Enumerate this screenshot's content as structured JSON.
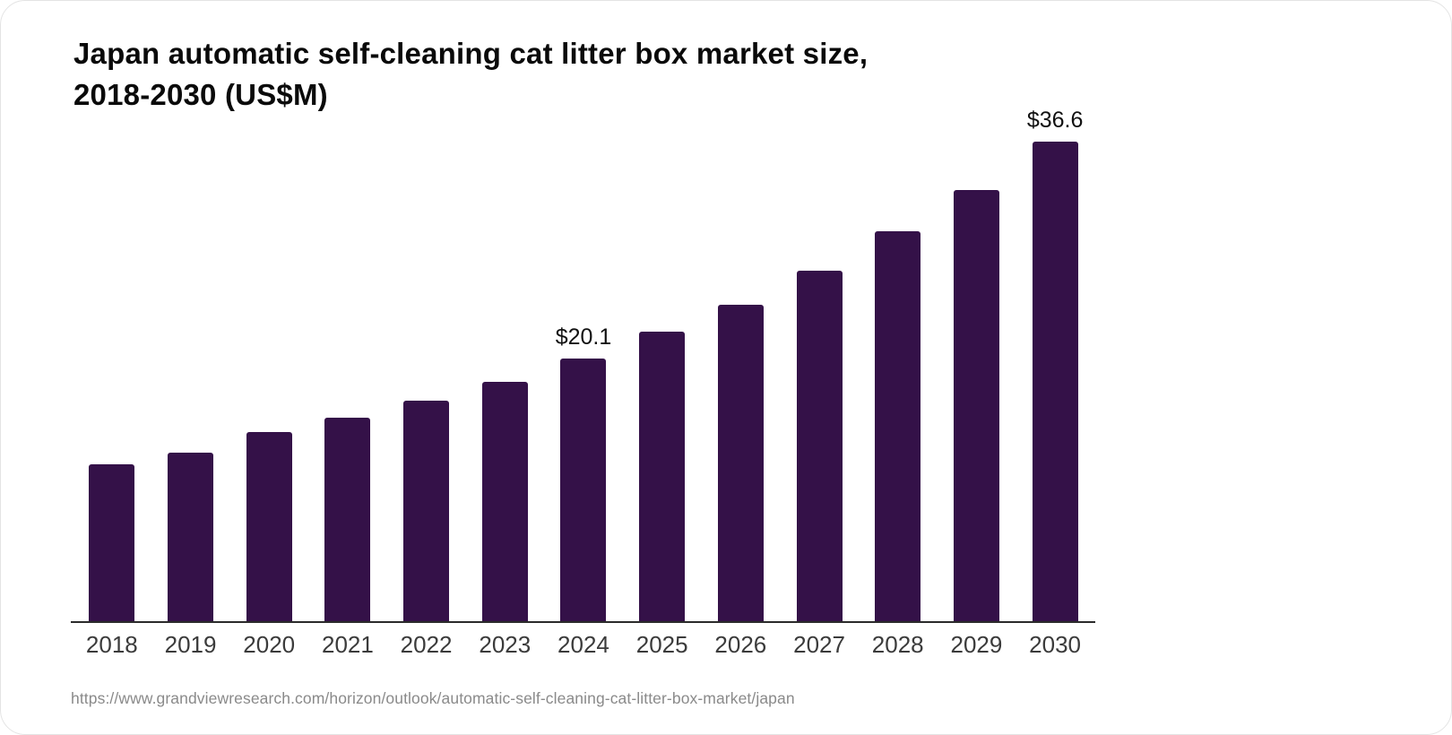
{
  "chart_data": {
    "type": "bar",
    "title": "Japan automatic self-cleaning cat litter box market size, 2018-2030 (US$M)",
    "title_line1": "Japan automatic self-cleaning cat litter box market size,",
    "title_line2": "2018-2030 (US$M)",
    "categories": [
      "2018",
      "2019",
      "2020",
      "2021",
      "2022",
      "2023",
      "2024",
      "2025",
      "2026",
      "2027",
      "2028",
      "2029",
      "2030"
    ],
    "values": [
      12.0,
      12.9,
      14.5,
      15.6,
      16.9,
      18.3,
      20.1,
      22.1,
      24.2,
      26.8,
      29.8,
      32.9,
      36.6
    ],
    "data_labels": {
      "2024": "$20.1",
      "2030": "$36.6"
    },
    "value_unit": "US$M",
    "value_prefix": "$",
    "ylim": [
      0,
      36.6
    ],
    "xlabel": "",
    "ylabel": "",
    "grid": false,
    "legend_position": "none",
    "bar_color": "#341148",
    "axis_color": "#2b2b2b",
    "tick_label_color": "#3b3b3b"
  },
  "source": {
    "url_text": "https://www.grandviewresearch.com/horizon/outlook/automatic-self-cleaning-cat-litter-box-market/japan"
  }
}
